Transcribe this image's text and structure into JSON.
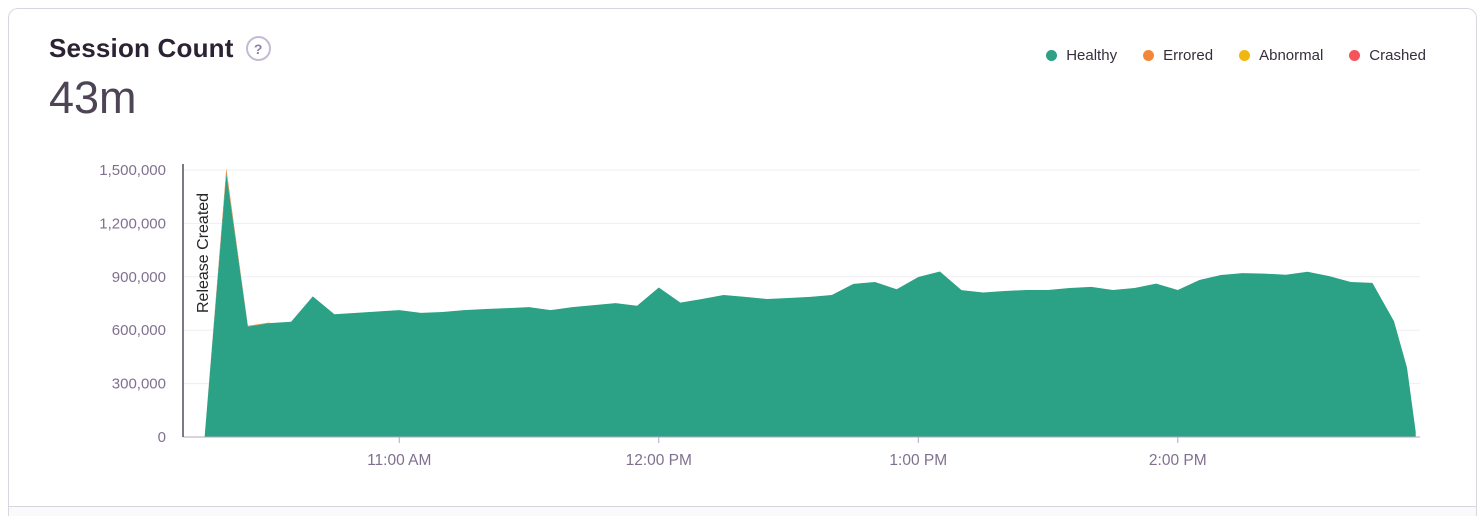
{
  "card": {
    "title": "Session Count",
    "help_icon": "?",
    "big_number": "43m"
  },
  "legend": {
    "items": [
      {
        "label": "Healthy",
        "color": "#2BA185"
      },
      {
        "label": "Errored",
        "color": "#F2873C"
      },
      {
        "label": "Abnormal",
        "color": "#F0B712"
      },
      {
        "label": "Crashed",
        "color": "#F4555A"
      }
    ]
  },
  "colors": {
    "healthy": "#2BA185",
    "errored": "#F2873C",
    "abnormal": "#F0B712",
    "crashed": "#F4555A",
    "grid": "#EFEDF3",
    "axis_line": "#B0A8BF",
    "axis_text": "#80708F",
    "release_line": "#544E5C",
    "release_text": "#262626"
  },
  "chart_data": {
    "type": "area",
    "stacked": true,
    "title": "Session Count",
    "total": "43m",
    "xlabel": "",
    "ylabel": "",
    "grid": "horizontal",
    "legend_position": "top-right",
    "ylim": [
      0,
      1500000
    ],
    "y_ticks": [
      "0",
      "300,000",
      "600,000",
      "900,000",
      "1,200,000",
      "1,500,000"
    ],
    "x_ticks": [
      "11:00 AM",
      "12:00 PM",
      "1:00 PM",
      "2:00 PM"
    ],
    "x_range": [
      "10:10 AM",
      "2:56 PM"
    ],
    "annotations": [
      {
        "type": "vline",
        "label": "Release Created",
        "time": "10:10 AM"
      }
    ],
    "series": [
      {
        "name": "Healthy",
        "color": "#2BA185",
        "points": [
          [
            "10:15 AM",
            0
          ],
          [
            "10:20 AM",
            1480000
          ],
          [
            "10:25 AM",
            620000
          ],
          [
            "10:30 AM",
            640000
          ],
          [
            "10:35 AM",
            648000
          ],
          [
            "10:40 AM",
            790000
          ],
          [
            "10:45 AM",
            690000
          ],
          [
            "10:50 AM",
            697000
          ],
          [
            "10:55 AM",
            705000
          ],
          [
            "11:00 AM",
            713000
          ],
          [
            "11:05 AM",
            697000
          ],
          [
            "11:10 AM",
            702000
          ],
          [
            "11:15 AM",
            713000
          ],
          [
            "11:20 AM",
            719000
          ],
          [
            "11:25 AM",
            724000
          ],
          [
            "11:30 AM",
            730000
          ],
          [
            "11:35 AM",
            713000
          ],
          [
            "11:40 AM",
            730000
          ],
          [
            "11:45 AM",
            741000
          ],
          [
            "11:50 AM",
            752000
          ],
          [
            "11:55 AM",
            737000
          ],
          [
            "12:00 PM",
            840000
          ],
          [
            "12:05 PM",
            755000
          ],
          [
            "12:10 PM",
            775000
          ],
          [
            "12:15 PM",
            798000
          ],
          [
            "12:20 PM",
            787000
          ],
          [
            "12:25 PM",
            775000
          ],
          [
            "12:30 PM",
            781000
          ],
          [
            "12:35 PM",
            787000
          ],
          [
            "12:40 PM",
            798000
          ],
          [
            "12:45 PM",
            860000
          ],
          [
            "12:50 PM",
            871000
          ],
          [
            "12:55 PM",
            830000
          ],
          [
            "1:00 PM",
            899000
          ],
          [
            "1:05 PM",
            930000
          ],
          [
            "1:10 PM",
            825000
          ],
          [
            "1:15 PM",
            812000
          ],
          [
            "1:20 PM",
            820000
          ],
          [
            "1:25 PM",
            826000
          ],
          [
            "1:30 PM",
            826000
          ],
          [
            "1:35 PM",
            837000
          ],
          [
            "1:40 PM",
            843000
          ],
          [
            "1:45 PM",
            826000
          ],
          [
            "1:50 PM",
            837000
          ],
          [
            "1:55 PM",
            862000
          ],
          [
            "2:00 PM",
            826000
          ],
          [
            "2:05 PM",
            882000
          ],
          [
            "2:10 PM",
            910000
          ],
          [
            "2:15 PM",
            921000
          ],
          [
            "2:20 PM",
            918000
          ],
          [
            "2:25 PM",
            912000
          ],
          [
            "2:30 PM",
            928000
          ],
          [
            "2:35 PM",
            904000
          ],
          [
            "2:40 PM",
            871000
          ],
          [
            "2:45 PM",
            866000
          ],
          [
            "2:50 PM",
            650000
          ],
          [
            "2:53 PM",
            390000
          ],
          [
            "2:55 PM",
            30000
          ]
        ]
      },
      {
        "name": "Errored",
        "color": "#F2873C",
        "points": [
          [
            "10:15 AM",
            0
          ],
          [
            "10:20 AM",
            30000
          ],
          [
            "10:25 AM",
            5000
          ],
          [
            "10:30 AM",
            3000
          ]
        ]
      }
    ]
  }
}
